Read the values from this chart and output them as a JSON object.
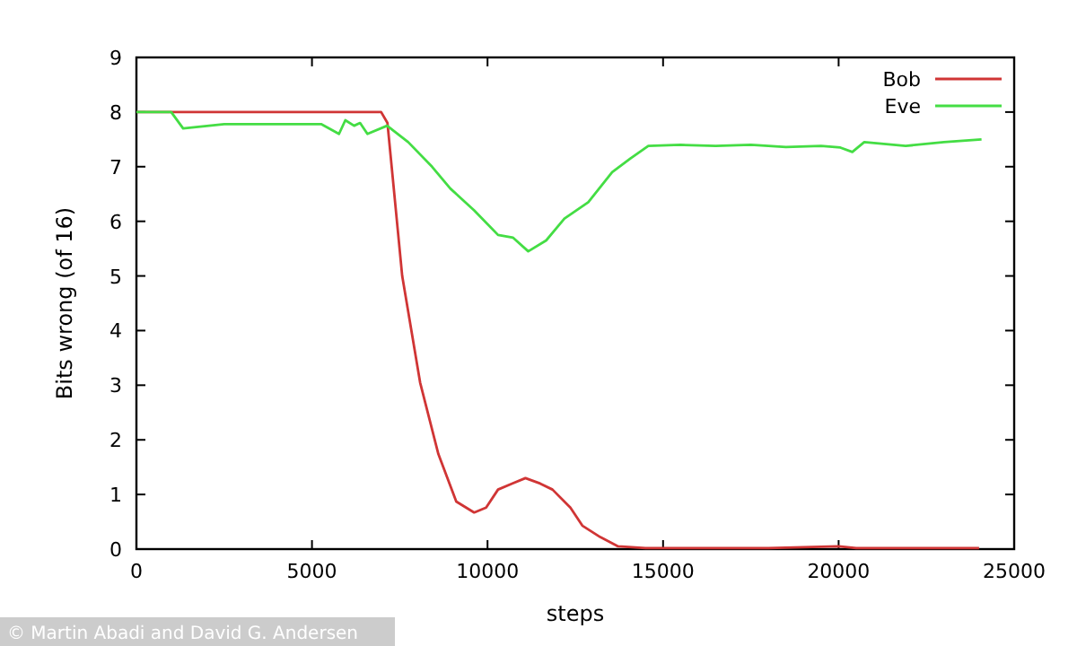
{
  "chart_data": {
    "type": "line",
    "xlabel": "steps",
    "ylabel": "Bits wrong (of 16)",
    "xlim": [
      0,
      25000
    ],
    "xticks": [
      0,
      5000,
      10000,
      15000,
      20000,
      25000
    ],
    "ylim": [
      0,
      9
    ],
    "yticks": [
      0,
      1,
      2,
      3,
      4,
      5,
      6,
      7,
      8,
      9
    ],
    "grid": false,
    "legend": "top right",
    "marker": "none",
    "line_style": "solid",
    "annotations": [
      "© Martin Abadi and David G. Andersen"
    ],
    "series": [
      {
        "name": "Bob",
        "color": "#d03535",
        "x": [
          0,
          1000,
          3000,
          5000,
          6970,
          7150,
          7300,
          7570,
          8080,
          8600,
          9110,
          9620,
          9960,
          10300,
          10700,
          11080,
          11500,
          11850,
          12360,
          12700,
          13210,
          13720,
          14500,
          16000,
          18000,
          20000,
          20500,
          22000,
          24000
        ],
        "values": [
          8,
          8,
          8,
          8,
          8,
          7.8,
          6.8,
          5,
          3.05,
          1.74,
          0.87,
          0.67,
          0.76,
          1.09,
          1.2,
          1.3,
          1.2,
          1.09,
          0.76,
          0.43,
          0.22,
          0.05,
          0.02,
          0.02,
          0.02,
          0.05,
          0.02,
          0.02,
          0.02
        ]
      },
      {
        "name": "Eve",
        "color": "#44dd44",
        "x": [
          0,
          990,
          1330,
          2500,
          4000,
          5260,
          5770,
          5950,
          6200,
          6370,
          6580,
          7140,
          7740,
          8420,
          8940,
          9620,
          10300,
          10730,
          11160,
          11670,
          12190,
          12870,
          13550,
          14070,
          14580,
          15500,
          16500,
          17500,
          18500,
          19500,
          20050,
          20390,
          20730,
          21910,
          23000,
          24070
        ],
        "values": [
          8,
          8,
          7.7,
          7.78,
          7.78,
          7.78,
          7.6,
          7.85,
          7.75,
          7.8,
          7.6,
          7.75,
          7.45,
          7.0,
          6.6,
          6.2,
          5.75,
          5.7,
          5.45,
          5.65,
          6.05,
          6.35,
          6.9,
          7.15,
          7.38,
          7.4,
          7.38,
          7.4,
          7.36,
          7.38,
          7.35,
          7.27,
          7.45,
          7.38,
          7.45,
          7.5
        ]
      }
    ]
  }
}
